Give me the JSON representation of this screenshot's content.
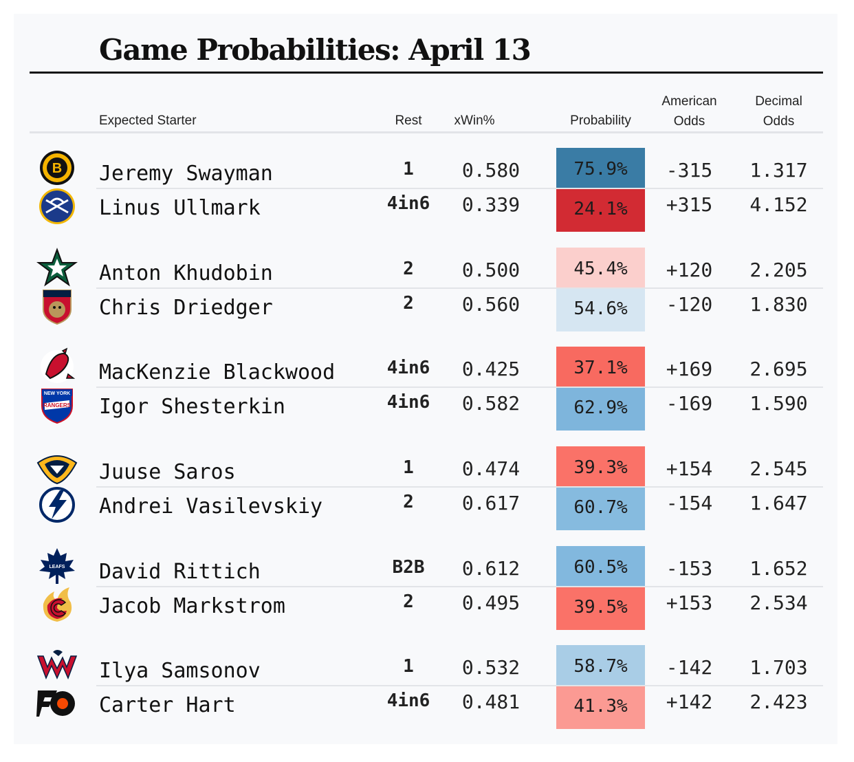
{
  "title": "Game Probabilities: April 13",
  "headers": {
    "starter": "Expected Starter",
    "rest": "Rest",
    "xwin": "xWin%",
    "probability": "Probability",
    "american_1": "American",
    "american_2": "Odds",
    "decimal_1": "Decimal",
    "decimal_2": "Odds"
  },
  "games": [
    {
      "rows": [
        {
          "team_icon": "bruins-logo-icon",
          "name": "Jeremy Swayman",
          "rest": "1",
          "xwin": "0.580",
          "prob": "75.9%",
          "prob_color": "#3a7ca5",
          "american": "-315",
          "decimal": "1.317"
        },
        {
          "team_icon": "sabres-logo-icon",
          "name": "Linus Ullmark",
          "rest": "4in6",
          "xwin": "0.339",
          "prob": "24.1%",
          "prob_color": "#d22b33",
          "american": "+315",
          "decimal": "4.152"
        }
      ]
    },
    {
      "rows": [
        {
          "team_icon": "stars-logo-icon",
          "name": "Anton Khudobin",
          "rest": "2",
          "xwin": "0.500",
          "prob": "45.4%",
          "prob_color": "#fbcfcc",
          "american": "+120",
          "decimal": "2.205"
        },
        {
          "team_icon": "panthers-logo-icon",
          "name": "Chris Driedger",
          "rest": "2",
          "xwin": "0.560",
          "prob": "54.6%",
          "prob_color": "#d6e6f2",
          "american": "-120",
          "decimal": "1.830"
        }
      ]
    },
    {
      "rows": [
        {
          "team_icon": "devils-logo-icon",
          "name": "MacKenzie Blackwood",
          "rest": "4in6",
          "xwin": "0.425",
          "prob": "37.1%",
          "prob_color": "#f86a60",
          "american": "+169",
          "decimal": "2.695"
        },
        {
          "team_icon": "rangers-logo-icon",
          "name": "Igor Shesterkin",
          "rest": "4in6",
          "xwin": "0.582",
          "prob": "62.9%",
          "prob_color": "#7eb5dc",
          "american": "-169",
          "decimal": "1.590"
        }
      ]
    },
    {
      "rows": [
        {
          "team_icon": "predators-logo-icon",
          "name": "Juuse Saros",
          "rest": "1",
          "xwin": "0.474",
          "prob": "39.3%",
          "prob_color": "#fa7268",
          "american": "+154",
          "decimal": "2.545"
        },
        {
          "team_icon": "lightning-logo-icon",
          "name": "Andrei Vasilevskiy",
          "rest": "2",
          "xwin": "0.617",
          "prob": "60.7%",
          "prob_color": "#86bbdf",
          "american": "-154",
          "decimal": "1.647"
        }
      ]
    },
    {
      "rows": [
        {
          "team_icon": "maple-leafs-logo-icon",
          "name": "David Rittich",
          "rest": "B2B",
          "xwin": "0.612",
          "prob": "60.5%",
          "prob_color": "#82b8de",
          "american": "-153",
          "decimal": "1.652"
        },
        {
          "team_icon": "flames-logo-icon",
          "name": "Jacob Markstrom",
          "rest": "2",
          "xwin": "0.495",
          "prob": "39.5%",
          "prob_color": "#fa7268",
          "american": "+153",
          "decimal": "2.534"
        }
      ]
    },
    {
      "rows": [
        {
          "team_icon": "capitals-logo-icon",
          "name": "Ilya Samsonov",
          "rest": "1",
          "xwin": "0.532",
          "prob": "58.7%",
          "prob_color": "#a9cde6",
          "american": "-142",
          "decimal": "1.703"
        },
        {
          "team_icon": "flyers-logo-icon",
          "name": "Carter Hart",
          "rest": "4in6",
          "xwin": "0.481",
          "prob": "41.3%",
          "prob_color": "#fb9a93",
          "american": "+142",
          "decimal": "2.423"
        }
      ]
    }
  ]
}
